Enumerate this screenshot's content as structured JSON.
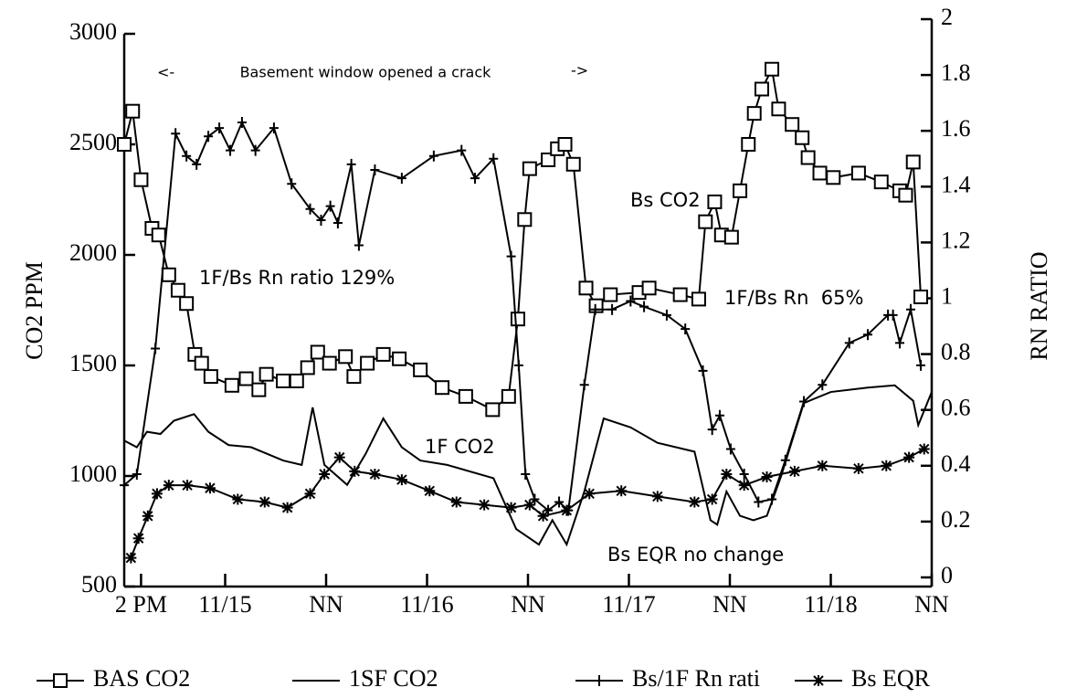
{
  "chart_data": {
    "type": "line",
    "y_label": "CO2 PPM",
    "y2_label": "RN RATIO",
    "xlim": [
      0,
      96
    ],
    "xticks": [
      {
        "value": 2,
        "label": "2 PM"
      },
      {
        "value": 12,
        "label": "11/15"
      },
      {
        "value": 24,
        "label": "NN"
      },
      {
        "value": 36,
        "label": "11/16"
      },
      {
        "value": 48,
        "label": "NN"
      },
      {
        "value": 60,
        "label": "11/17"
      },
      {
        "value": 72,
        "label": "NN"
      },
      {
        "value": 84,
        "label": "11/18"
      },
      {
        "value": 96,
        "label": "NN"
      }
    ],
    "ylim": [
      500,
      3000
    ],
    "yticks": [
      500,
      1000,
      1500,
      2000,
      2500,
      3000
    ],
    "y2lim": [
      0,
      2
    ],
    "y2ticks": [
      0,
      0.2,
      0.4,
      0.6,
      0.8,
      1,
      1.2,
      1.4,
      1.6,
      1.8,
      2
    ],
    "annotations": [
      "<-",
      "Basement window opened a crack",
      "->",
      "Bs CO2",
      "1F/Bs Rn ratio 129%",
      "1F/Bs Rn  65%",
      "1F CO2",
      "Bs EQR no change"
    ],
    "series": [
      {
        "name": "BAS CO2",
        "color": "#000000",
        "marker": "square",
        "x": [
          0,
          1,
          2,
          3.3,
          4.1,
          5.3,
          6.4,
          7.4,
          8.4,
          9.2,
          10.3,
          12.8,
          14.5,
          16,
          16.9,
          18.9,
          20.5,
          21.8,
          23,
          24.4,
          26.3,
          27.3,
          28.9,
          30.8,
          32.7,
          35.2,
          37.8,
          40.6,
          43.8,
          45.7,
          46.8,
          47.6,
          48.2,
          50.4,
          51.5,
          52.4,
          53.4,
          54.9,
          56.1,
          57.8,
          61.2,
          62.4,
          66.1,
          68.3,
          69.1,
          70.2,
          71,
          72.2,
          73.2,
          74.2,
          74.9,
          75.8,
          77,
          77.8,
          79.4,
          80.6,
          81.3,
          82.7,
          84.3,
          87.3,
          90,
          92.2,
          92.9,
          93.8,
          94.7
        ],
        "values": [
          2500,
          2650,
          2340,
          2120,
          2090,
          1910,
          1840,
          1780,
          1550,
          1510,
          1450,
          1410,
          1440,
          1390,
          1460,
          1430,
          1430,
          1490,
          1560,
          1510,
          1540,
          1450,
          1510,
          1550,
          1530,
          1480,
          1400,
          1360,
          1300,
          1360,
          1710,
          2160,
          2390,
          2430,
          2480,
          2500,
          2410,
          1850,
          1770,
          1820,
          1830,
          1850,
          1820,
          1800,
          2150,
          2240,
          2090,
          2080,
          2290,
          2500,
          2640,
          2750,
          2840,
          2660,
          2590,
          2530,
          2440,
          2370,
          2350,
          2370,
          2330,
          2290,
          2270,
          2420,
          1810
        ]
      },
      {
        "name": "1SF CO2",
        "color": "#000000",
        "marker": "none",
        "x": [
          0,
          1.5,
          2.7,
          4.3,
          5.9,
          8.3,
          10,
          12.4,
          15.1,
          18.9,
          21.1,
          22.4,
          23.8,
          26.5,
          28.7,
          30.8,
          33,
          35.2,
          38.4,
          43.9,
          46.6,
          49.3,
          50.9,
          52.6,
          54.7,
          57,
          60.2,
          63.4,
          67.8,
          69.7,
          70.5,
          71.6,
          73.2,
          74.8,
          76.4,
          78.1,
          80.8,
          84,
          88.4,
          91.6,
          93.8,
          94.4,
          96
        ],
        "values": [
          1160,
          1130,
          1200,
          1190,
          1250,
          1280,
          1200,
          1140,
          1130,
          1070,
          1050,
          1310,
          1050,
          960,
          1100,
          1260,
          1130,
          1070,
          1050,
          990,
          760,
          690,
          800,
          690,
          930,
          1260,
          1220,
          1150,
          1110,
          800,
          780,
          930,
          820,
          800,
          820,
          1000,
          1330,
          1380,
          1400,
          1410,
          1340,
          1230,
          1380
        ]
      },
      {
        "name": "Bs/1F Rn rati",
        "color": "#000000",
        "marker": "plus",
        "axis": "y2",
        "x": [
          0,
          1.5,
          3.7,
          6.1,
          7.4,
          8.6,
          10,
          11.3,
          12.6,
          14,
          15.6,
          17.8,
          19.9,
          22.1,
          23.4,
          24.5,
          25.4,
          27,
          27.9,
          29.8,
          33,
          36.8,
          40.1,
          41.7,
          43.9,
          46,
          46.9,
          47.7,
          48.8,
          50.4,
          51.7,
          52.8,
          54.7,
          56,
          58,
          60.2,
          61.8,
          64.5,
          66.7,
          68.8,
          69.9,
          70.8,
          72.1,
          73.7,
          75.4,
          77,
          78.6,
          80.8,
          83,
          86.2,
          88.4,
          90.8,
          91.4,
          92.2,
          93.5,
          94.7
        ],
        "values": [
          0.33,
          0.37,
          0.82,
          1.59,
          1.51,
          1.48,
          1.58,
          1.61,
          1.53,
          1.63,
          1.53,
          1.61,
          1.41,
          1.32,
          1.28,
          1.33,
          1.27,
          1.48,
          1.19,
          1.46,
          1.43,
          1.51,
          1.53,
          1.43,
          1.5,
          1.15,
          0.76,
          0.37,
          0.28,
          0.24,
          0.27,
          0.24,
          0.69,
          0.96,
          0.96,
          0.99,
          0.97,
          0.94,
          0.89,
          0.74,
          0.53,
          0.58,
          0.46,
          0.37,
          0.27,
          0.28,
          0.42,
          0.63,
          0.69,
          0.84,
          0.87,
          0.94,
          0.94,
          0.84,
          0.96,
          0.76
        ]
      },
      {
        "name": "Bs EQR",
        "color": "#000000",
        "marker": "star",
        "axis": "y2",
        "x": [
          0.8,
          1.7,
          2.8,
          3.9,
          5.3,
          7.5,
          10.2,
          13.5,
          16.7,
          19.4,
          22.1,
          23.8,
          25.6,
          27.4,
          29.8,
          33,
          36.3,
          39.5,
          42.8,
          46,
          48.2,
          49.8,
          52.6,
          55.3,
          59.1,
          63.4,
          67.8,
          69.9,
          71.6,
          73.7,
          76.4,
          79.7,
          83,
          87.3,
          90.6,
          93.3,
          95.1
        ],
        "values": [
          0.07,
          0.14,
          0.22,
          0.3,
          0.33,
          0.33,
          0.32,
          0.28,
          0.27,
          0.25,
          0.3,
          0.37,
          0.43,
          0.38,
          0.37,
          0.35,
          0.31,
          0.27,
          0.26,
          0.25,
          0.26,
          0.22,
          0.24,
          0.3,
          0.31,
          0.29,
          0.27,
          0.28,
          0.37,
          0.33,
          0.36,
          0.38,
          0.4,
          0.39,
          0.4,
          0.43,
          0.46
        ]
      }
    ]
  }
}
